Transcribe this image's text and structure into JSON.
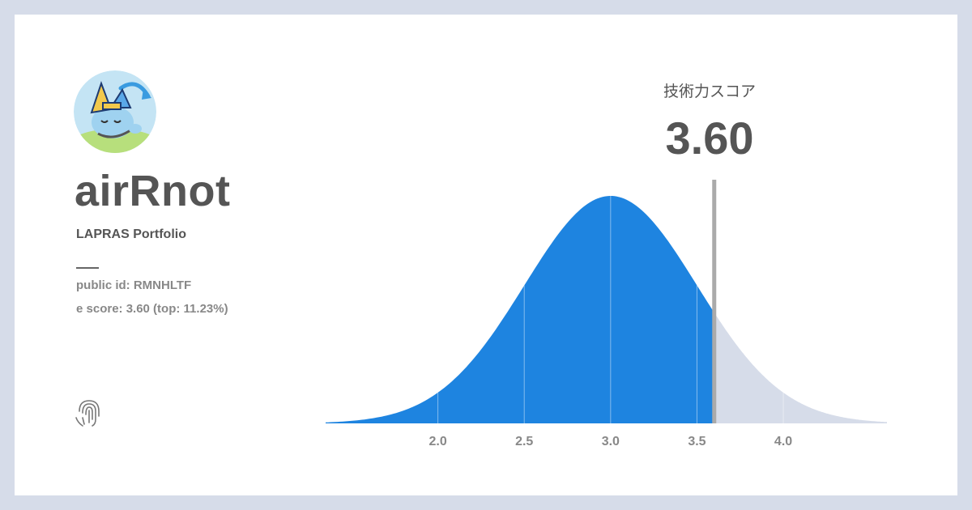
{
  "profile": {
    "name": "airRnot",
    "subtitle": "LAPRAS Portfolio",
    "public_id_text": "public id: RMNHLTF",
    "score_text": "e score: 3.60 (top: 11.23%)"
  },
  "icons": {
    "avatar": "pokemon-avatar",
    "footer": "fingerprint-icon"
  },
  "score": {
    "label": "技術力スコア",
    "value": "3.60"
  },
  "colors": {
    "page_background": "#d6dce9",
    "card_background": "#ffffff",
    "filled_area": "#1e84e0",
    "remaining_area": "#d6dce9",
    "marker": "#aaaaaa",
    "text_dark": "#555555",
    "text_muted": "#888888"
  },
  "chart_data": {
    "type": "area",
    "distribution": "normal",
    "mean": 3.0,
    "std": 0.5,
    "xlim": [
      1.35,
      4.6
    ],
    "marker_value": 3.6,
    "top_percent": 11.23,
    "x_ticks": [
      2.0,
      2.5,
      3.0,
      3.5,
      4.0
    ],
    "x_tick_labels": [
      "2.0",
      "2.5",
      "3.0",
      "3.5",
      "4.0"
    ],
    "grid": "vertical lines at ticks"
  }
}
